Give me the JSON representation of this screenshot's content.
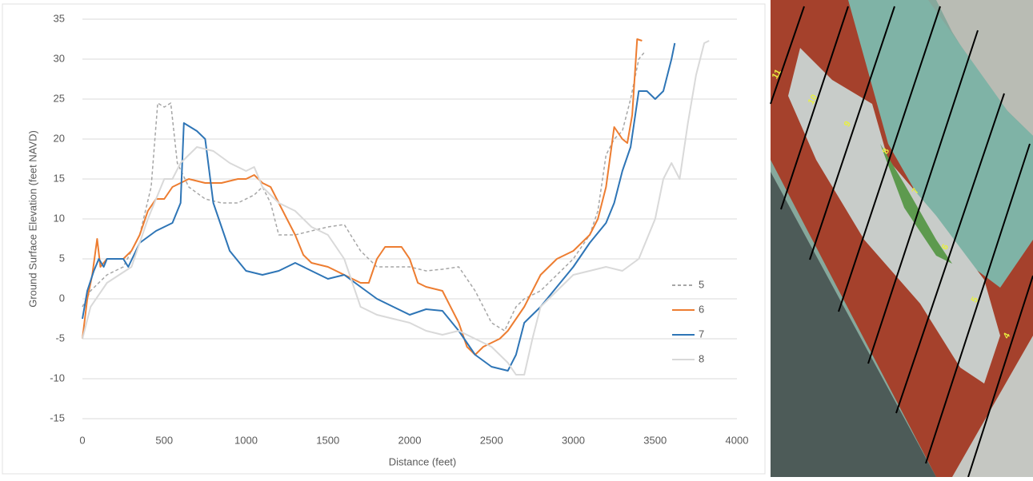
{
  "chart_data": {
    "type": "line",
    "x_label": "Distance (feet)",
    "y_label": "Ground Surface Elevation (feet NAVD)",
    "xlim": [
      0,
      4000
    ],
    "xticks": [
      0,
      500,
      1000,
      1500,
      2000,
      2500,
      3000,
      3500,
      4000
    ],
    "ylim": [
      -15,
      35
    ],
    "yticks": [
      -15,
      -10,
      -5,
      0,
      5,
      10,
      15,
      20,
      25,
      30,
      35
    ],
    "grid": true,
    "legend": "right",
    "series": [
      {
        "name": "5",
        "color": "#a6a6a6",
        "dashed": true,
        "x": [
          0,
          50,
          150,
          250,
          350,
          420,
          460,
          500,
          540,
          580,
          650,
          750,
          850,
          950,
          1050,
          1100,
          1150,
          1200,
          1300,
          1400,
          1500,
          1600,
          1700,
          1800,
          1900,
          2000,
          2100,
          2200,
          2300,
          2400,
          2500,
          2580,
          2650,
          2700,
          2800,
          2900,
          3000,
          3100,
          3150,
          3200,
          3250,
          3300,
          3350,
          3400,
          3440
        ],
        "values": [
          -1,
          1,
          3,
          4,
          8,
          14,
          24.5,
          24,
          24.5,
          17,
          14,
          12.5,
          12,
          12,
          13,
          14,
          12,
          8,
          8,
          8.5,
          9,
          9.3,
          6,
          4,
          4,
          4,
          3.5,
          3.7,
          4,
          1,
          -3,
          -4,
          -1,
          0,
          1,
          3,
          5,
          8,
          11,
          18,
          20,
          21,
          25,
          30,
          31
        ]
      },
      {
        "name": "6",
        "color": "#ed7d31",
        "dashed": false,
        "x": [
          0,
          30,
          60,
          90,
          110,
          150,
          250,
          300,
          350,
          400,
          450,
          500,
          550,
          650,
          750,
          850,
          950,
          1000,
          1050,
          1100,
          1150,
          1200,
          1250,
          1300,
          1350,
          1400,
          1500,
          1600,
          1700,
          1750,
          1800,
          1850,
          1950,
          2000,
          2050,
          2100,
          2200,
          2300,
          2350,
          2400,
          2450,
          2550,
          2600,
          2700,
          2800,
          2900,
          3000,
          3100,
          3150,
          3200,
          3250,
          3300,
          3330,
          3360,
          3390,
          3420
        ],
        "values": [
          -5,
          0,
          3,
          7.5,
          4,
          5,
          5,
          6,
          8,
          11,
          12.5,
          12.5,
          14,
          15,
          14.5,
          14.5,
          15,
          15,
          15.5,
          14.5,
          14,
          12,
          10,
          8,
          5.5,
          4.5,
          4,
          3,
          2,
          2,
          5,
          6.5,
          6.5,
          5,
          2,
          1.5,
          1,
          -3,
          -6,
          -7,
          -6,
          -5,
          -4,
          -1,
          3,
          5,
          6,
          8,
          10,
          14,
          21.5,
          20,
          19.5,
          23,
          32.5,
          32.3
        ]
      },
      {
        "name": "7",
        "color": "#2e75b6",
        "dashed": false,
        "x": [
          0,
          30,
          70,
          100,
          130,
          150,
          250,
          280,
          350,
          450,
          550,
          600,
          620,
          700,
          750,
          800,
          900,
          1000,
          1100,
          1200,
          1300,
          1400,
          1500,
          1600,
          1700,
          1800,
          1900,
          2000,
          2100,
          2200,
          2300,
          2400,
          2500,
          2600,
          2650,
          2700,
          2800,
          2900,
          3000,
          3100,
          3200,
          3250,
          3300,
          3350,
          3400,
          3450,
          3500,
          3550,
          3600,
          3620
        ],
        "values": [
          -2.5,
          1,
          3.5,
          5,
          4,
          5,
          5,
          4,
          7,
          8.5,
          9.5,
          12,
          22,
          21,
          20,
          12,
          6,
          3.5,
          3,
          3.5,
          4.5,
          3.5,
          2.5,
          3,
          1.5,
          0,
          -1,
          -2,
          -1.3,
          -1.5,
          -4,
          -7,
          -8.5,
          -9,
          -7,
          -3,
          -1,
          1.5,
          4,
          7,
          9.5,
          12,
          16,
          19,
          26,
          26,
          25,
          26,
          30,
          32
        ]
      },
      {
        "name": "8",
        "color": "#d9d9d9",
        "dashed": false,
        "x": [
          0,
          50,
          150,
          300,
          400,
          500,
          550,
          600,
          700,
          800,
          900,
          1000,
          1050,
          1100,
          1200,
          1300,
          1400,
          1500,
          1600,
          1700,
          1800,
          1900,
          2000,
          2100,
          2200,
          2300,
          2400,
          2500,
          2600,
          2650,
          2700,
          2750,
          2800,
          2900,
          3000,
          3100,
          3200,
          3300,
          3400,
          3500,
          3550,
          3600,
          3650,
          3700,
          3750,
          3800,
          3830
        ],
        "values": [
          -5,
          -1,
          2,
          4,
          10,
          15,
          15,
          17,
          19,
          18.5,
          17,
          16,
          16.5,
          14,
          12,
          11,
          9,
          8,
          5,
          -1,
          -2,
          -2.5,
          -3,
          -4,
          -4.5,
          -4,
          -5,
          -6,
          -8,
          -9.5,
          -9.5,
          -5,
          -1,
          1,
          3,
          3.5,
          4,
          3.5,
          5,
          10,
          15,
          17,
          15,
          22,
          28,
          32,
          32.3
        ]
      }
    ]
  },
  "map": {
    "labels": [
      "11",
      "10",
      "9",
      "8",
      "7",
      "6",
      "5",
      "4"
    ]
  }
}
